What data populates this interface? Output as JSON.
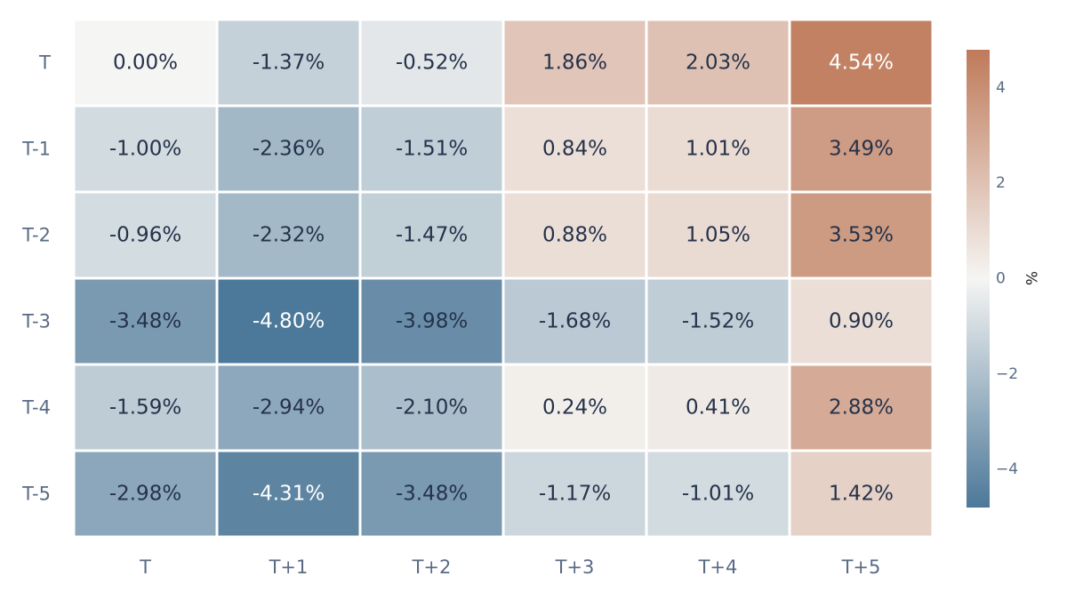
{
  "chart_data": {
    "type": "heatmap",
    "x_categories": [
      "T",
      "T+1",
      "T+2",
      "T+3",
      "T+4",
      "T+5"
    ],
    "y_categories": [
      "T",
      "T-1",
      "T-2",
      "T-3",
      "T-4",
      "T-5"
    ],
    "values": [
      [
        0.0,
        -1.37,
        -0.52,
        1.86,
        2.03,
        4.54
      ],
      [
        -1.0,
        -2.36,
        -1.51,
        0.84,
        1.01,
        3.49
      ],
      [
        -0.96,
        -2.32,
        -1.47,
        0.88,
        1.05,
        3.53
      ],
      [
        -3.48,
        -4.8,
        -3.98,
        -1.68,
        -1.52,
        0.9
      ],
      [
        -1.59,
        -2.94,
        -2.1,
        0.24,
        0.41,
        2.88
      ],
      [
        -2.98,
        -4.31,
        -3.48,
        -1.17,
        -1.01,
        1.42
      ]
    ],
    "value_format": "percent_2dp",
    "colorscale": {
      "min": -4.8,
      "max": 4.8,
      "colors": [
        "#4c7899",
        "#f5f5f3",
        "#bf7a5a"
      ]
    },
    "colorbar": {
      "title": "%",
      "ticks": [
        4,
        2,
        0,
        -2,
        -4
      ],
      "tick_labels": [
        "4",
        "2",
        "0",
        "−2",
        "−4"
      ]
    },
    "text_colors": {
      "dark": "#25324a",
      "light": "#ffffff"
    }
  }
}
